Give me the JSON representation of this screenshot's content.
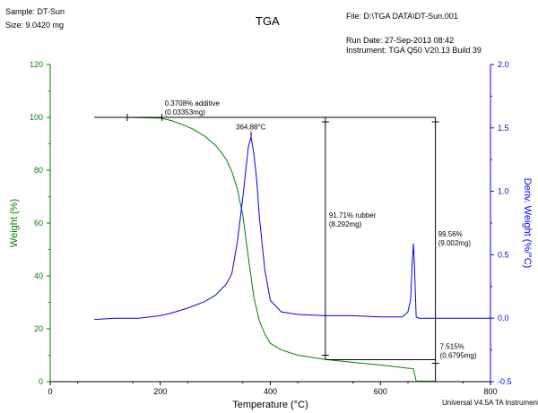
{
  "header": {
    "sample": "Sample: DT-Sun",
    "size": "Size:  9.0420 mg",
    "title": "TGA",
    "file": "File: D:\\TGA DATA\\DT-Sun.001",
    "run_date": "Run Date: 27-Sep-2013 08:42",
    "instrument": "Instrument: TGA Q50 V20.13 Build 39"
  },
  "footer": {
    "software": "Universal V4.5A TA Instruments"
  },
  "colors": {
    "weight": "#008000",
    "deriv": "#0000ff",
    "text": "#000000"
  },
  "chart_data": {
    "type": "line",
    "title": "TGA",
    "xlabel": "Temperature (°C)",
    "ylabel": "Weight (%)",
    "y2label": "Deriv. Weight (%/°C)",
    "xlim": [
      0,
      800
    ],
    "ylim": [
      0,
      120
    ],
    "y2lim": [
      -0.5,
      2.0
    ],
    "x_ticks": [
      0,
      200,
      400,
      600,
      800
    ],
    "y_ticks": [
      0,
      20,
      40,
      60,
      80,
      100,
      120
    ],
    "y2_ticks": [
      -0.5,
      0.0,
      0.5,
      1.0,
      1.5,
      2.0
    ],
    "x_tick_labels": [
      "0",
      "200",
      "400",
      "600",
      "800"
    ],
    "y_tick_labels": [
      "0",
      "20",
      "40",
      "60",
      "80",
      "100",
      "120"
    ],
    "y2_tick_labels": [
      "-0.5",
      "0.0",
      "0.5",
      "1.0",
      "1.5",
      "2.0"
    ],
    "grid": false,
    "series": [
      {
        "name": "Weight (%)",
        "axis": "left",
        "x": [
          80,
          140,
          200,
          220,
          240,
          260,
          280,
          300,
          310,
          320,
          330,
          340,
          350,
          360,
          370,
          380,
          390,
          400,
          420,
          450,
          500,
          550,
          600,
          650,
          660,
          665,
          700
        ],
        "y": [
          100,
          100,
          99.7,
          98.8,
          97.3,
          95.5,
          93,
          89.5,
          87,
          84,
          79.5,
          73,
          63,
          47,
          32,
          23,
          18,
          14.5,
          12,
          10,
          8.4,
          7.3,
          6.3,
          5.1,
          4.9,
          0.2,
          0.2
        ]
      },
      {
        "name": "Deriv. Weight (%/°C)",
        "axis": "right",
        "x": [
          80,
          120,
          160,
          200,
          220,
          250,
          280,
          300,
          320,
          330,
          340,
          350,
          355,
          360,
          365,
          370,
          375,
          380,
          390,
          400,
          420,
          450,
          500,
          550,
          600,
          640,
          650,
          655,
          658,
          660,
          662,
          665,
          670,
          700,
          800
        ],
        "y": [
          -0.01,
          0.0,
          0.0,
          0.02,
          0.04,
          0.08,
          0.13,
          0.18,
          0.27,
          0.35,
          0.6,
          0.95,
          1.15,
          1.35,
          1.43,
          1.3,
          1.1,
          0.8,
          0.38,
          0.14,
          0.05,
          0.03,
          0.02,
          0.02,
          0.01,
          0.01,
          0.05,
          0.15,
          0.45,
          0.59,
          0.4,
          0.01,
          0.0,
          0.0,
          0.0
        ]
      }
    ],
    "annotations": [
      {
        "label": "0.3708% additive",
        "sub": "(0.03353mg)"
      },
      {
        "label": "364.88°C"
      },
      {
        "label": "91.71% rubber",
        "sub": "(8.292mg)"
      },
      {
        "label": "99.56%",
        "sub": "(9.002mg)"
      },
      {
        "label": "7.515%",
        "sub": "(0.6795mg)"
      }
    ]
  }
}
